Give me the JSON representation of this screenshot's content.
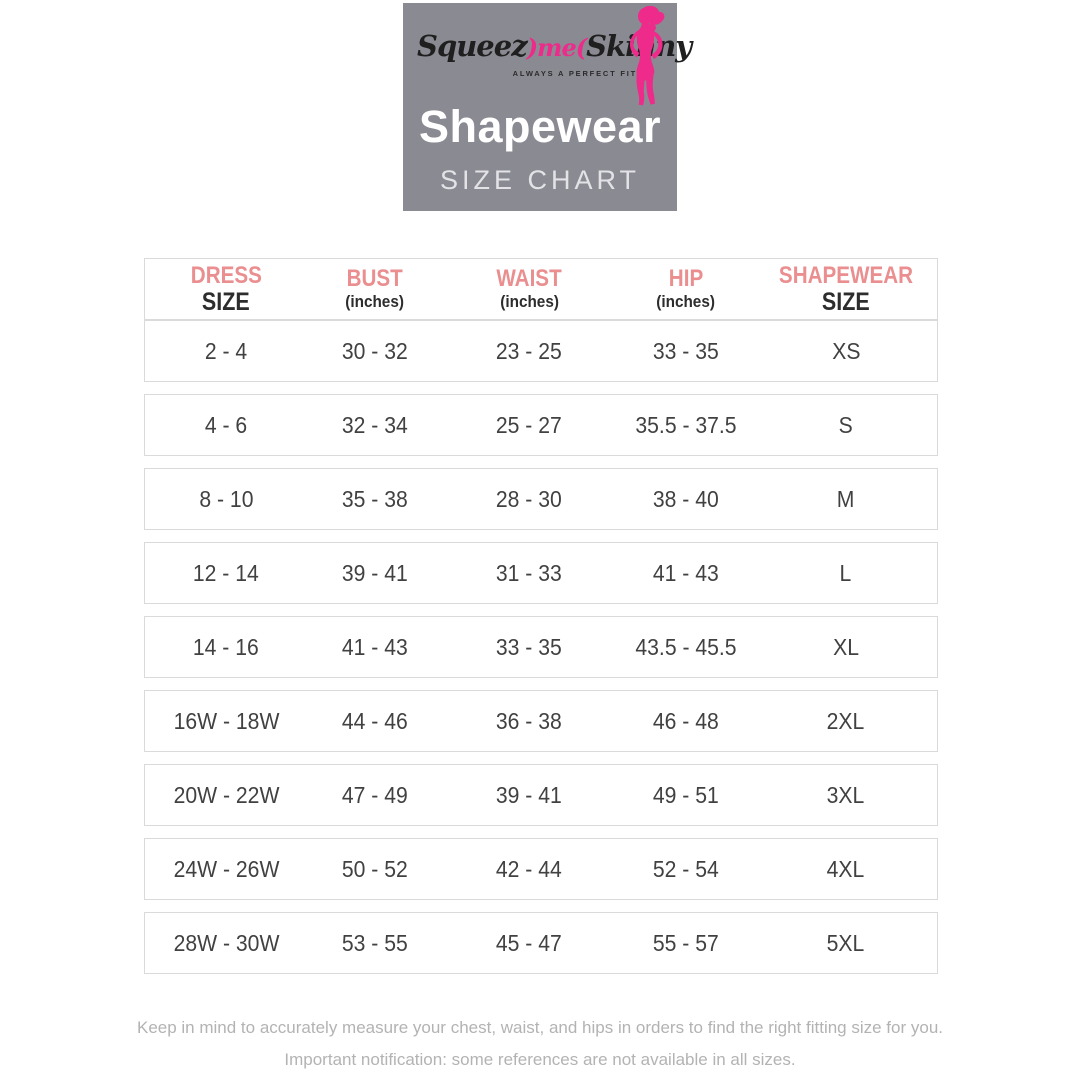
{
  "header": {
    "logo": {
      "script_left": "Squeez",
      "script_mid": ")me(",
      "script_right": "Skinny",
      "tagline": "ALWAYS A PERFECT FIT"
    },
    "title": "Shapewear",
    "subtitle": "SIZE CHART"
  },
  "table": {
    "columns": [
      {
        "label": "DRESS",
        "sublabel": "SIZE"
      },
      {
        "label": "BUST",
        "sublabel": "(inches)"
      },
      {
        "label": "WAIST",
        "sublabel": "(inches)"
      },
      {
        "label": "HIP",
        "sublabel": "(inches)"
      },
      {
        "label": "SHAPEWEAR",
        "sublabel": "SIZE"
      }
    ],
    "rows": [
      [
        "2 - 4",
        "30 - 32",
        "23 - 25",
        "33 - 35",
        "XS"
      ],
      [
        "4 - 6",
        "32 - 34",
        "25 - 27",
        "35.5 - 37.5",
        "S"
      ],
      [
        "8 - 10",
        "35 - 38",
        "28 - 30",
        "38 - 40",
        "M"
      ],
      [
        "12 - 14",
        "39 - 41",
        "31 - 33",
        "41 - 43",
        "L"
      ],
      [
        "14 - 16",
        "41 - 43",
        "33 - 35",
        "43.5 - 45.5",
        "XL"
      ],
      [
        "16W - 18W",
        "44 - 46",
        "36 - 38",
        "46 - 48",
        "2XL"
      ],
      [
        "20W - 22W",
        "47 - 49",
        "39 - 41",
        "49 - 51",
        "3XL"
      ],
      [
        "24W - 26W",
        "50 - 52",
        "42 - 44",
        "52 - 54",
        "4XL"
      ],
      [
        "28W - 30W",
        "53 - 55",
        "45 - 47",
        "55 - 57",
        "5XL"
      ]
    ]
  },
  "footer": {
    "line1": "Keep in mind to accurately measure your chest, waist, and hips in orders to find the right fitting size for you.",
    "line2": "Important notification: some references are not available in all sizes."
  },
  "colors": {
    "brand_bg": "#8a8a92",
    "accent_pink": "#ee2a8b",
    "column_header_pink": "#ea8e8f",
    "cell_text": "#414141",
    "row_border": "#dadada",
    "footer_text": "#b3b3b3"
  }
}
